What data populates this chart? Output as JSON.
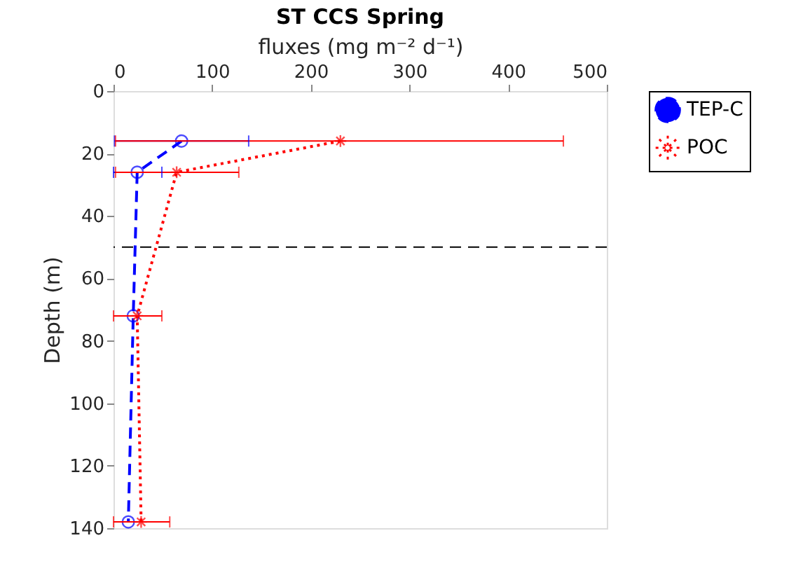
{
  "chart_data": {
    "type": "line",
    "title": "ST CCS Spring",
    "xlabel": "fluxes (mg m⁻² d⁻¹)",
    "ylabel": "Depth (m)",
    "xlim": [
      0,
      500
    ],
    "xticks": [
      0,
      100,
      200,
      300,
      400,
      500
    ],
    "ylim": [
      140,
      0
    ],
    "yticks": [
      0,
      20,
      40,
      60,
      80,
      100,
      120,
      140
    ],
    "legend": "top right",
    "grid": false,
    "series": [
      {
        "name": "TEP-C",
        "color": "#0000ff",
        "marker": "circle",
        "line_style": "dashed",
        "x": [
          69,
          24,
          20,
          15
        ],
        "values": [
          16,
          26,
          72,
          138
        ],
        "xerrors": [
          [
            1,
            137
          ],
          [
            0,
            49
          ],
          null,
          null
        ]
      },
      {
        "name": "POC",
        "color": "#ff0000",
        "marker": "cross",
        "line_style": "dotted",
        "x": [
          230,
          64,
          24,
          28
        ],
        "values": [
          16,
          26,
          72,
          138
        ],
        "xerrors": [
          [
            2,
            456
          ],
          [
            2,
            127
          ],
          [
            0,
            49
          ],
          [
            0,
            57
          ]
        ]
      }
    ],
    "ref_lines": [
      {
        "axis": "y",
        "value": 50,
        "color": "#000000",
        "line_style": "dashed"
      }
    ]
  }
}
